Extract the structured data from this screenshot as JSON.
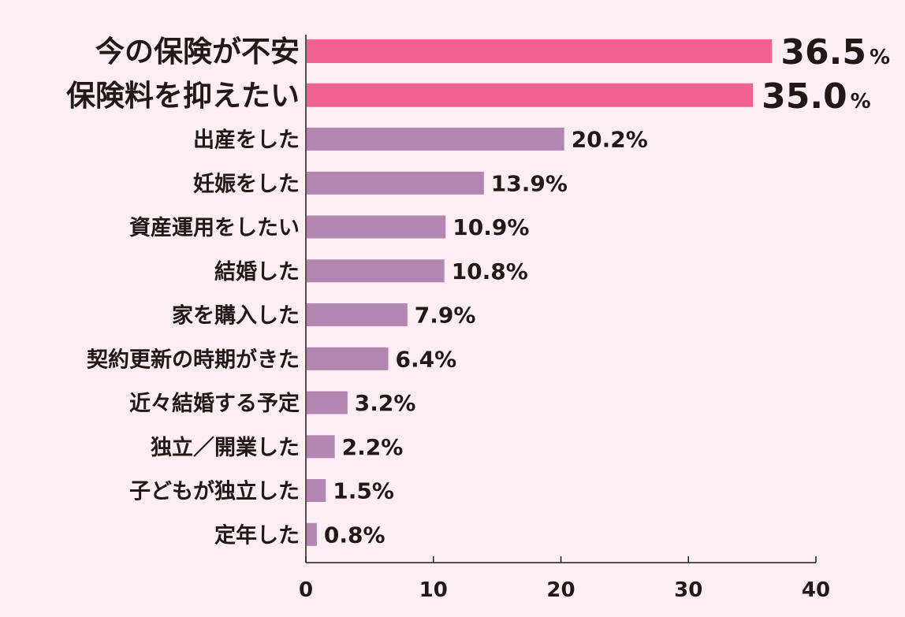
{
  "chart_data": {
    "type": "bar",
    "orientation": "horizontal",
    "title": "",
    "xlabel": "",
    "ylabel": "",
    "xlim": [
      0,
      40
    ],
    "x_ticks": [
      0,
      10,
      20,
      30,
      40
    ],
    "x_tick_labels": [
      "0",
      "10",
      "20",
      "30",
      "40"
    ],
    "grid": false,
    "legend": "none",
    "value_unit": "%",
    "categories": [
      "今の保険が不安",
      "保険料を抑えたい",
      "出産をした",
      "妊娠をした",
      "資産運用をしたい",
      "結婚した",
      "家を購入した",
      "契約更新の時期がきた",
      "近々結婚する予定",
      "独立／開業した",
      "子どもが独立した",
      "定年した"
    ],
    "values": [
      36.5,
      35.0,
      20.2,
      13.9,
      10.9,
      10.8,
      7.9,
      6.4,
      3.2,
      2.2,
      1.5,
      0.8
    ],
    "value_labels": [
      "36.5",
      "35.0",
      "20.2",
      "13.9",
      "10.9",
      "10.8",
      "7.9",
      "6.4",
      "3.2",
      "2.2",
      "1.5",
      "0.8"
    ],
    "highlighted_count": 2,
    "colors": {
      "highlight_bar": "#f06292",
      "highlight_text": "#f0608f",
      "normal_bar": "#b286b0",
      "text": "#231815",
      "background": "#fdeef4"
    }
  }
}
